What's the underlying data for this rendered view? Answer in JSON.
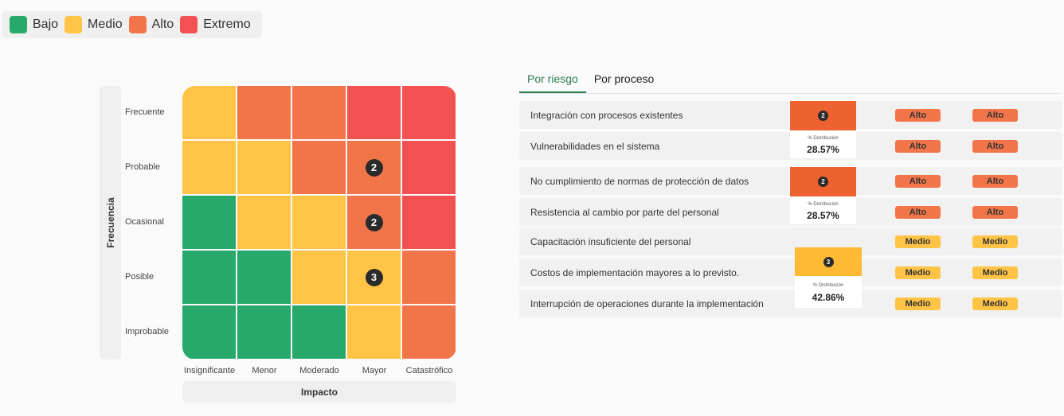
{
  "legend": [
    {
      "label": "Bajo",
      "color": "#27a96c"
    },
    {
      "label": "Medio",
      "color": "#ffc445"
    },
    {
      "label": "Alto",
      "color": "#f2754a"
    },
    {
      "label": "Extremo",
      "color": "#f25151"
    }
  ],
  "chart_data": {
    "type": "heatmap",
    "xlabel": "Impacto",
    "ylabel": "Frecuencia",
    "x_categories": [
      "Insignificante",
      "Menor",
      "Moderado",
      "Mayor",
      "Catastrófico"
    ],
    "y_categories": [
      "Frecuente",
      "Probable",
      "Ocasional",
      "Posible",
      "Improbable"
    ],
    "levels": [
      [
        "Medio",
        "Alto",
        "Alto",
        "Extremo",
        "Extremo"
      ],
      [
        "Medio",
        "Medio",
        "Alto",
        "Alto",
        "Extremo"
      ],
      [
        "Bajo",
        "Medio",
        "Medio",
        "Alto",
        "Extremo"
      ],
      [
        "Bajo",
        "Bajo",
        "Medio",
        "Medio",
        "Alto"
      ],
      [
        "Bajo",
        "Bajo",
        "Bajo",
        "Medio",
        "Alto"
      ]
    ],
    "counts": [
      {
        "frecuencia": "Probable",
        "impacto": "Mayor",
        "count": 2
      },
      {
        "frecuencia": "Ocasional",
        "impacto": "Mayor",
        "count": 2
      },
      {
        "frecuencia": "Posible",
        "impacto": "Mayor",
        "count": 3
      }
    ]
  },
  "tabs": [
    {
      "label": "Por riesgo",
      "active": true
    },
    {
      "label": "Por proceso",
      "active": false
    }
  ],
  "risks": [
    {
      "name": "Integración con procesos existentes",
      "level_a": "Alto",
      "level_b": "Alto"
    },
    {
      "name": "Vulnerabilidades en el sistema",
      "level_a": "Alto",
      "level_b": "Alto"
    },
    {
      "name": "No cumplimiento de normas de protección de datos",
      "level_a": "Alto",
      "level_b": "Alto"
    },
    {
      "name": "Resistencia al cambio por parte del personal",
      "level_a": "Alto",
      "level_b": "Alto"
    },
    {
      "name": "Capacitación insuficiente del personal",
      "level_a": "Medio",
      "level_b": "Medio"
    },
    {
      "name": "Costos de implementación mayores a lo previsto.",
      "level_a": "Medio",
      "level_b": "Medio"
    },
    {
      "name": "Interrupción de operaciones durante la implementación",
      "level_a": "Medio",
      "level_b": "Medio"
    }
  ],
  "distributions": [
    {
      "count": "2",
      "caption": "% Distribución",
      "value": "28.57%",
      "color": "#ee6130"
    },
    {
      "count": "2",
      "caption": "% Distribución",
      "value": "28.57%",
      "color": "#ee6130"
    },
    {
      "count": "3",
      "caption": "% Distribución",
      "value": "42.86%",
      "color": "#ffba33"
    }
  ],
  "level_colors": {
    "Bajo": "#27a96c",
    "Medio": "#ffc445",
    "Alto": "#f2754a",
    "Extremo": "#f25151"
  }
}
